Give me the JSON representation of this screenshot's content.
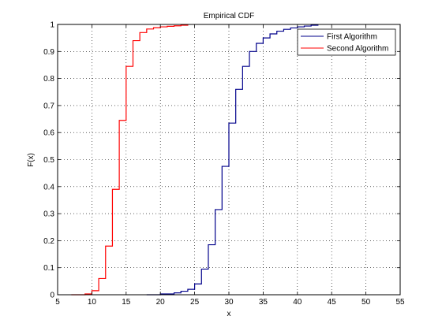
{
  "chart_data": {
    "type": "line",
    "title": "Empirical CDF",
    "xlabel": "x",
    "ylabel": "F(x)",
    "xlim": [
      5,
      55
    ],
    "ylim": [
      0,
      1
    ],
    "xticks": [
      "5",
      "10",
      "15",
      "20",
      "25",
      "30",
      "35",
      "40",
      "45",
      "50",
      "55"
    ],
    "yticks": [
      "0",
      "0.1",
      "0.2",
      "0.3",
      "0.4",
      "0.5",
      "0.6",
      "0.7",
      "0.8",
      "0.9",
      "1"
    ],
    "grid": true,
    "grid_style": "dotted",
    "legend_position": "top-right",
    "step": true,
    "series": [
      {
        "name": "First Algorithm",
        "color": "#00008b",
        "x": [
          18,
          20,
          22,
          23,
          24,
          25,
          26,
          27,
          28,
          29,
          30,
          31,
          32,
          33,
          34,
          35,
          36,
          37,
          38,
          39,
          40,
          41,
          42,
          43
        ],
        "y": [
          0,
          0.003,
          0.007,
          0.013,
          0.02,
          0.04,
          0.095,
          0.185,
          0.315,
          0.475,
          0.635,
          0.76,
          0.845,
          0.9,
          0.93,
          0.95,
          0.965,
          0.975,
          0.982,
          0.987,
          0.991,
          0.994,
          0.997,
          1.0
        ]
      },
      {
        "name": "Second Algorithm",
        "color": "#ff0000",
        "x": [
          7,
          9,
          10,
          11,
          12,
          13,
          14,
          15,
          16,
          17,
          18,
          19,
          20,
          21,
          22,
          23,
          24
        ],
        "y": [
          0,
          0.003,
          0.015,
          0.06,
          0.18,
          0.39,
          0.645,
          0.845,
          0.94,
          0.97,
          0.983,
          0.988,
          0.991,
          0.993,
          0.995,
          0.997,
          1.0
        ]
      }
    ]
  }
}
